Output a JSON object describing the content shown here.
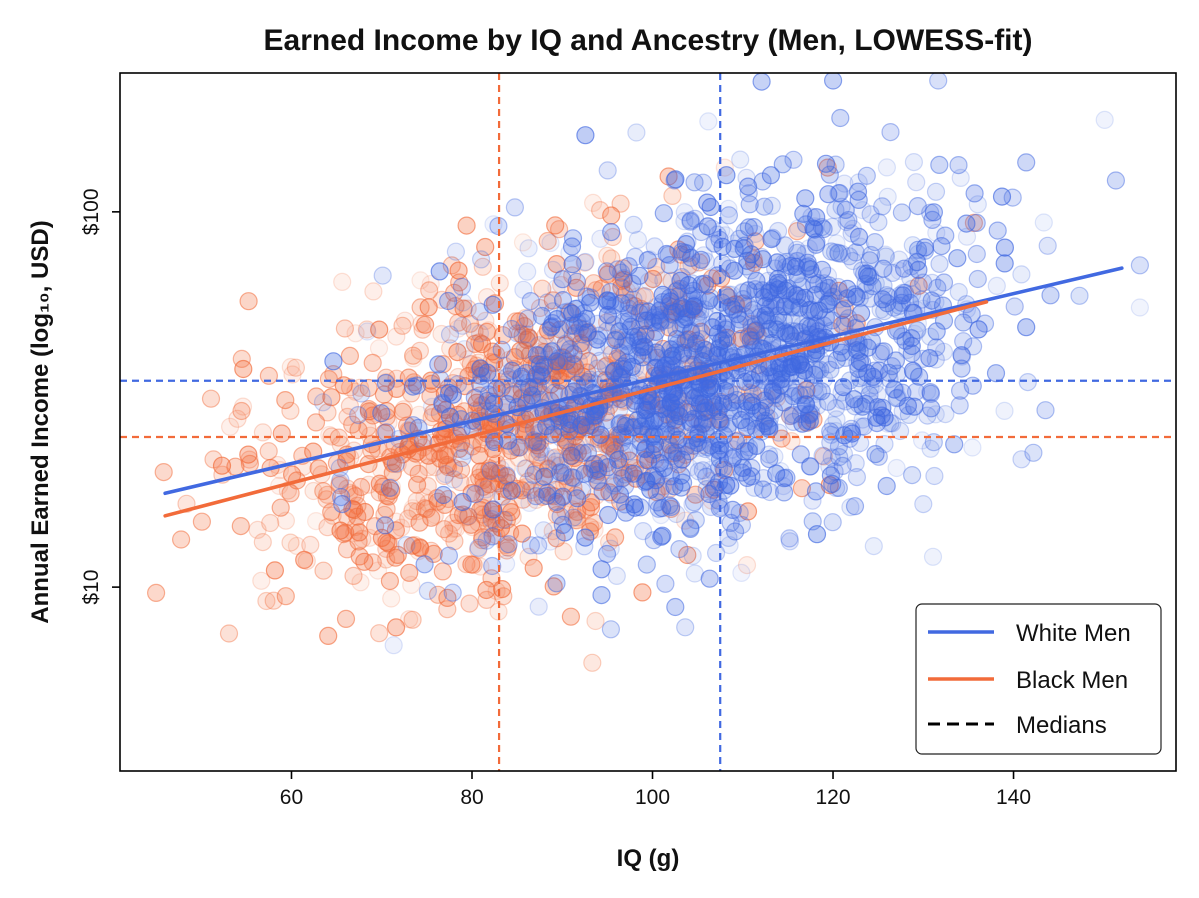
{
  "chart_data": {
    "type": "scatter",
    "title": "Earned Income by IQ and Ancestry (Men, LOWESS-fit)",
    "xlabel": "IQ (g)",
    "ylabel": "Annual Earned Income (log₁₀, USD)",
    "y_scale": "log10",
    "xlim": [
      41,
      158
    ],
    "ylim_log10": [
      0.51,
      2.37
    ],
    "x_ticks": [
      60,
      80,
      100,
      120,
      140
    ],
    "x_tick_labels": [
      "60",
      "80",
      "100",
      "120",
      "140"
    ],
    "y_ticks_log10": [
      1,
      2
    ],
    "y_tick_labels": [
      "$10",
      "$100"
    ],
    "grid": false,
    "legend_position": "bottom-right",
    "legend": [
      {
        "label": "White Men",
        "style": "solid",
        "color": "#4169E1"
      },
      {
        "label": "Black Men",
        "style": "solid",
        "color": "#F26B3A"
      },
      {
        "label": "Medians",
        "style": "dashed",
        "color": "#000000"
      }
    ],
    "series": [
      {
        "name": "White Men",
        "color": "#4169E1",
        "n_points": 1600,
        "x_mean": 108,
        "x_sd": 15,
        "x_range": [
          46,
          154
        ],
        "lowess_fit": {
          "x": [
            46,
            152
          ],
          "y_log10": [
            1.25,
            1.85
          ]
        },
        "median_x": 107.5,
        "median_y_log10": 1.55
      },
      {
        "name": "Black Men",
        "color": "#F26B3A",
        "n_points": 900,
        "x_mean": 84,
        "x_sd": 14,
        "x_range": [
          45,
          137
        ],
        "lowess_fit": {
          "x": [
            46,
            137
          ],
          "y_log10": [
            1.19,
            1.76
          ]
        },
        "median_x": 83,
        "median_y_log10": 1.4
      }
    ]
  }
}
